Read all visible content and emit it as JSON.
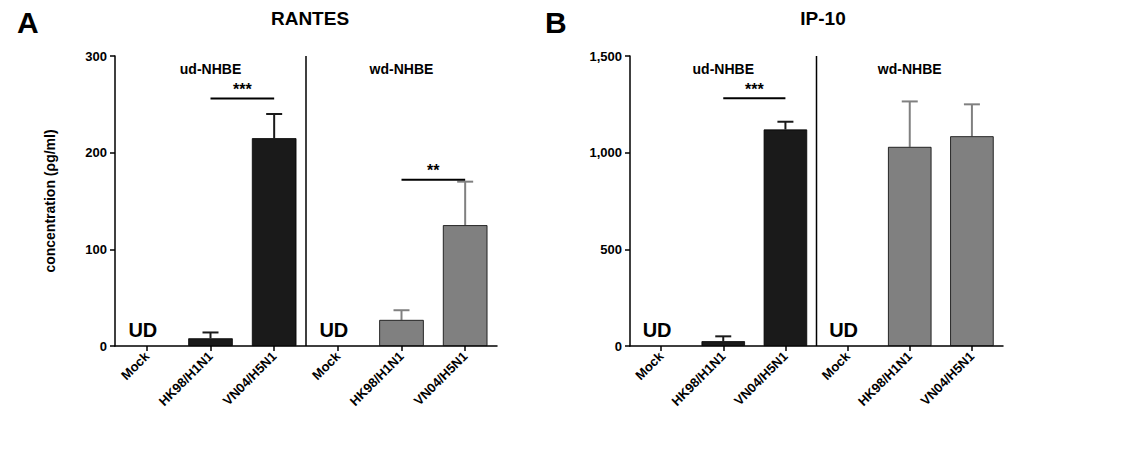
{
  "chart_data": [
    {
      "type": "bar",
      "panel": "A",
      "title": "RANTES",
      "ylabel": "concentration (ρg/ml)",
      "categories": [
        "Mock",
        "HK98/H1N1",
        "VN04/H5N1",
        "Mock",
        "HK98/H1N1",
        "VN04/H5N1"
      ],
      "groups": [
        {
          "name": "ud-NHBE",
          "from": 0,
          "to": 2
        },
        {
          "name": "wd-NHBE",
          "from": 3,
          "to": 5
        }
      ],
      "values": [
        null,
        8,
        215,
        null,
        27,
        125
      ],
      "errors": [
        null,
        6,
        25,
        null,
        10,
        45
      ],
      "colors": [
        "#1a1a1a",
        "#1a1a1a",
        "#1a1a1a",
        "#808080",
        "#808080",
        "#808080"
      ],
      "ylim": [
        0,
        300
      ],
      "yticks": [
        0,
        100,
        200,
        300
      ],
      "grid": false,
      "annotations": [
        {
          "text": "UD",
          "index": 0
        },
        {
          "text": "UD",
          "index": 3
        }
      ],
      "significance": [
        {
          "from": 1,
          "to": 2,
          "y": 256,
          "label": "***"
        },
        {
          "from": 4,
          "to": 5,
          "y": 172,
          "label": "**"
        }
      ]
    },
    {
      "type": "bar",
      "panel": "B",
      "title": "IP-10",
      "categories": [
        "Mock",
        "HK98/H1N1",
        "VN04/H5N1",
        "Mock",
        "HK98/H1N1",
        "VN04/H5N1"
      ],
      "groups": [
        {
          "name": "ud-NHBE",
          "from": 0,
          "to": 2
        },
        {
          "name": "wd-NHBE",
          "from": 3,
          "to": 5
        }
      ],
      "values": [
        null,
        25,
        1120,
        null,
        1030,
        1085
      ],
      "errors": [
        null,
        25,
        40,
        null,
        235,
        165
      ],
      "colors": [
        "#1a1a1a",
        "#1a1a1a",
        "#1a1a1a",
        "#808080",
        "#808080",
        "#808080"
      ],
      "ylim": [
        0,
        1500
      ],
      "yticks": [
        0,
        500,
        1000,
        1500
      ],
      "grid": false,
      "annotations": [
        {
          "text": "UD",
          "index": 0
        },
        {
          "text": "UD",
          "index": 3
        }
      ],
      "significance": [
        {
          "from": 1,
          "to": 2,
          "y": 1282,
          "label": "***"
        }
      ]
    }
  ]
}
